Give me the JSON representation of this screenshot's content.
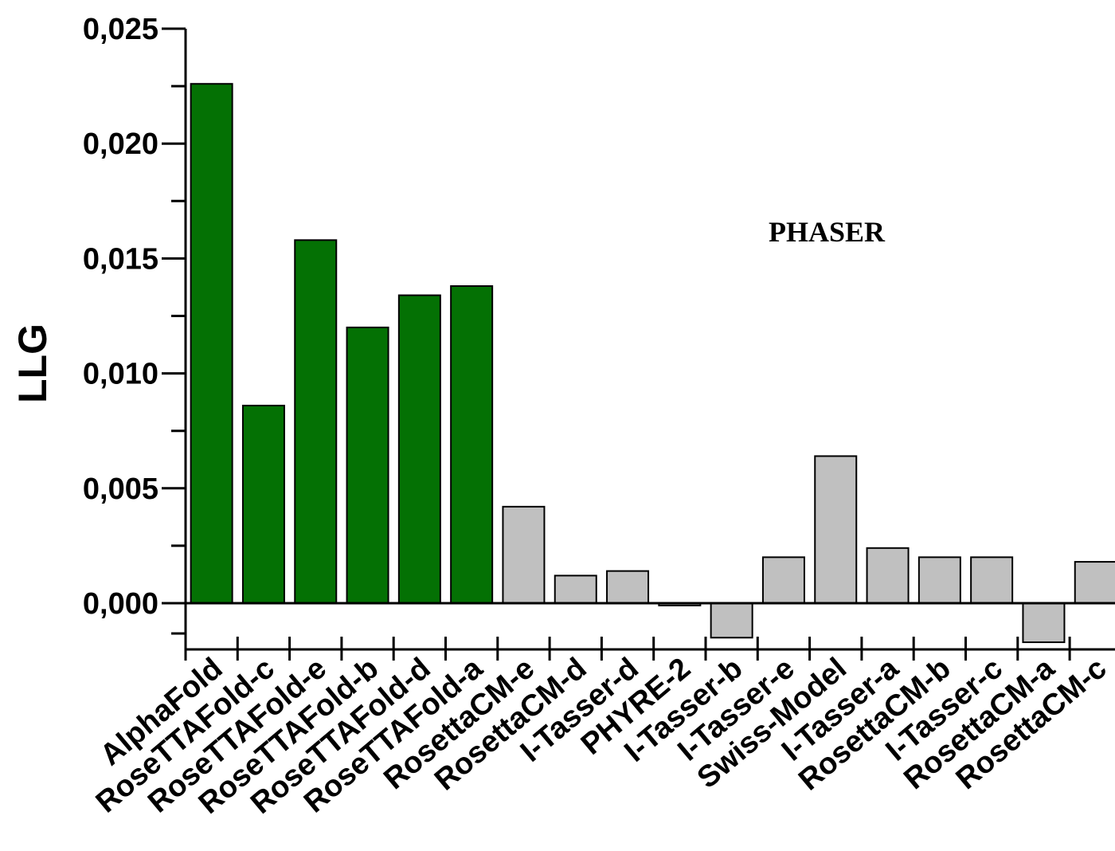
{
  "chart_data": {
    "type": "bar",
    "title": "",
    "xlabel": "",
    "ylabel": "LLG",
    "annotation": "PHASER",
    "ylim": [
      -0.002,
      0.025
    ],
    "yticks": [
      "0,000",
      "0,005",
      "0,010",
      "0,015",
      "0,020",
      "0,025"
    ],
    "ytick_values": [
      0.0,
      0.005,
      0.01,
      0.015,
      0.02,
      0.025
    ],
    "grid": false,
    "categories": [
      "AlphaFold",
      "RoseTTAFold-c",
      "RoseTTAFold-e",
      "RoseTTAFold-b",
      "RoseTTAFold-d",
      "RoseTTAFold-a",
      "RosettaCM-e",
      "RosettaCM-d",
      "I-Tasser-d",
      "PHYRE-2",
      "I-Tasser-b",
      "I-Tasser-e",
      "Swiss-Model",
      "I-Tasser-a",
      "RosettaCM-b",
      "I-Tasser-c",
      "RosettaCM-a",
      "RosettaCM-c"
    ],
    "values": [
      0.0226,
      0.0086,
      0.0158,
      0.012,
      0.0134,
      0.0138,
      0.0042,
      0.0012,
      0.0014,
      -0.0001,
      -0.0015,
      0.002,
      0.0064,
      0.0024,
      0.002,
      0.002,
      -0.0017,
      0.0018
    ],
    "colors": [
      "#047104",
      "#047104",
      "#047104",
      "#047104",
      "#047104",
      "#047104",
      "#c0c0c0",
      "#c0c0c0",
      "#c0c0c0",
      "#c0c0c0",
      "#c0c0c0",
      "#c0c0c0",
      "#c0c0c0",
      "#c0c0c0",
      "#c0c0c0",
      "#c0c0c0",
      "#c0c0c0",
      "#c0c0c0"
    ]
  }
}
